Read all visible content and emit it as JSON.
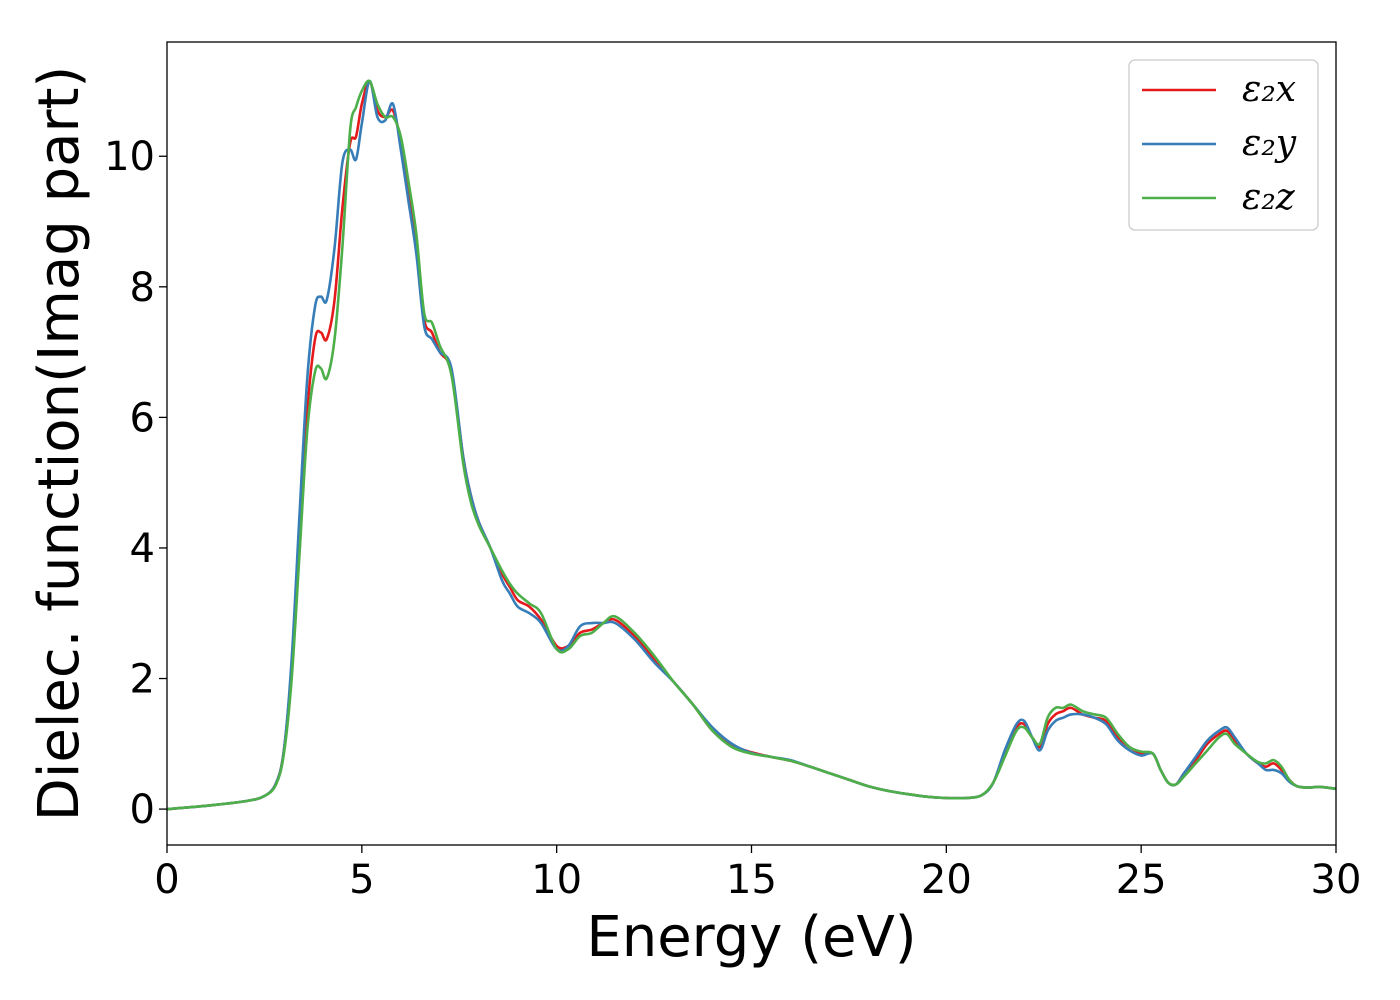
{
  "chart_data": {
    "type": "line",
    "xlabel": "Energy (eV)",
    "ylabel": "Dielec. function(Imag part)",
    "xlim": [
      0,
      30
    ],
    "ylim": [
      -0.55,
      11.75
    ],
    "xticks": [
      0,
      5,
      10,
      15,
      20,
      25,
      30
    ],
    "yticks": [
      0,
      2,
      4,
      6,
      8,
      10
    ],
    "grid": false,
    "legend_position": "top-right",
    "x": [
      0,
      1,
      2,
      2.5,
      2.8,
      3,
      3.2,
      3.4,
      3.6,
      3.8,
      3.95,
      4.1,
      4.3,
      4.5,
      4.7,
      4.85,
      5.0,
      5.2,
      5.4,
      5.6,
      5.8,
      6.0,
      6.2,
      6.4,
      6.6,
      6.8,
      7.0,
      7.3,
      7.6,
      7.8,
      8.0,
      8.3,
      8.6,
      8.8,
      9.0,
      9.3,
      9.6,
      10.0,
      10.3,
      10.6,
      10.9,
      11.2,
      11.5,
      12.0,
      12.5,
      13.0,
      13.5,
      14.0,
      14.5,
      15.0,
      15.5,
      16.0,
      16.5,
      17.0,
      17.5,
      18.0,
      18.5,
      19.0,
      19.5,
      20.0,
      20.5,
      20.9,
      21.2,
      21.5,
      21.8,
      22.0,
      22.2,
      22.4,
      22.6,
      22.8,
      23.0,
      23.2,
      23.5,
      23.8,
      24.1,
      24.4,
      24.7,
      25.0,
      25.3,
      25.5,
      25.7,
      25.9,
      26.1,
      26.4,
      26.7,
      27.0,
      27.2,
      27.4,
      27.7,
      28.0,
      28.2,
      28.4,
      28.6,
      28.8,
      29.0,
      29.3,
      29.6,
      30.0
    ],
    "series": [
      {
        "name": "ε₂x",
        "color": "#e41a1c",
        "y": [
          0,
          0.05,
          0.12,
          0.2,
          0.4,
          0.9,
          2.2,
          4.2,
          6.1,
          7.2,
          7.3,
          7.2,
          7.8,
          9.2,
          10.2,
          10.3,
          10.8,
          11.15,
          10.7,
          10.6,
          10.7,
          10.2,
          9.4,
          8.6,
          7.5,
          7.3,
          7.0,
          6.7,
          5.4,
          4.8,
          4.4,
          4.0,
          3.6,
          3.4,
          3.2,
          3.1,
          2.9,
          2.5,
          2.5,
          2.7,
          2.75,
          2.85,
          2.9,
          2.65,
          2.3,
          1.95,
          1.6,
          1.2,
          0.98,
          0.87,
          0.8,
          0.74,
          0.65,
          0.55,
          0.45,
          0.35,
          0.28,
          0.23,
          0.19,
          0.17,
          0.17,
          0.21,
          0.4,
          0.85,
          1.25,
          1.3,
          1.1,
          0.95,
          1.3,
          1.45,
          1.5,
          1.55,
          1.45,
          1.4,
          1.35,
          1.1,
          0.95,
          0.85,
          0.85,
          0.6,
          0.4,
          0.38,
          0.55,
          0.75,
          1.0,
          1.15,
          1.2,
          1.05,
          0.85,
          0.7,
          0.65,
          0.7,
          0.6,
          0.45,
          0.35,
          0.33,
          0.34,
          0.31
        ]
      },
      {
        "name": "ε₂y",
        "color": "#377eb8",
        "y": [
          0,
          0.05,
          0.12,
          0.2,
          0.4,
          0.9,
          2.3,
          4.5,
          6.6,
          7.7,
          7.85,
          7.8,
          8.6,
          9.9,
          10.1,
          9.95,
          10.5,
          11.15,
          10.6,
          10.55,
          10.8,
          10.1,
          9.3,
          8.5,
          7.4,
          7.2,
          7.0,
          6.75,
          5.4,
          4.8,
          4.4,
          4.0,
          3.5,
          3.3,
          3.1,
          3.0,
          2.85,
          2.45,
          2.5,
          2.8,
          2.85,
          2.85,
          2.85,
          2.6,
          2.25,
          1.95,
          1.6,
          1.25,
          1.0,
          0.86,
          0.8,
          0.75,
          0.65,
          0.55,
          0.45,
          0.35,
          0.28,
          0.23,
          0.19,
          0.17,
          0.17,
          0.21,
          0.4,
          0.9,
          1.3,
          1.35,
          1.1,
          0.9,
          1.2,
          1.35,
          1.4,
          1.45,
          1.45,
          1.4,
          1.3,
          1.05,
          0.9,
          0.82,
          0.85,
          0.6,
          0.4,
          0.38,
          0.55,
          0.8,
          1.05,
          1.2,
          1.25,
          1.1,
          0.85,
          0.7,
          0.6,
          0.6,
          0.55,
          0.42,
          0.35,
          0.33,
          0.34,
          0.31
        ]
      },
      {
        "name": "ε₂z",
        "color": "#4daf4a",
        "y": [
          0,
          0.05,
          0.12,
          0.2,
          0.38,
          0.85,
          2.0,
          3.9,
          5.8,
          6.7,
          6.75,
          6.6,
          7.2,
          8.6,
          10.4,
          10.75,
          11.0,
          11.15,
          10.8,
          10.6,
          10.6,
          10.3,
          9.6,
          8.8,
          7.6,
          7.45,
          7.1,
          6.65,
          5.3,
          4.7,
          4.35,
          4.0,
          3.65,
          3.45,
          3.3,
          3.15,
          3.0,
          2.45,
          2.45,
          2.65,
          2.7,
          2.85,
          2.95,
          2.7,
          2.35,
          1.95,
          1.6,
          1.2,
          0.95,
          0.85,
          0.8,
          0.74,
          0.65,
          0.55,
          0.45,
          0.35,
          0.28,
          0.23,
          0.19,
          0.17,
          0.17,
          0.21,
          0.4,
          0.8,
          1.2,
          1.25,
          1.1,
          1.0,
          1.4,
          1.55,
          1.55,
          1.6,
          1.5,
          1.45,
          1.4,
          1.15,
          0.95,
          0.88,
          0.85,
          0.6,
          0.4,
          0.38,
          0.5,
          0.7,
          0.9,
          1.1,
          1.15,
          1.0,
          0.85,
          0.72,
          0.7,
          0.75,
          0.65,
          0.45,
          0.35,
          0.33,
          0.34,
          0.31
        ]
      }
    ]
  }
}
